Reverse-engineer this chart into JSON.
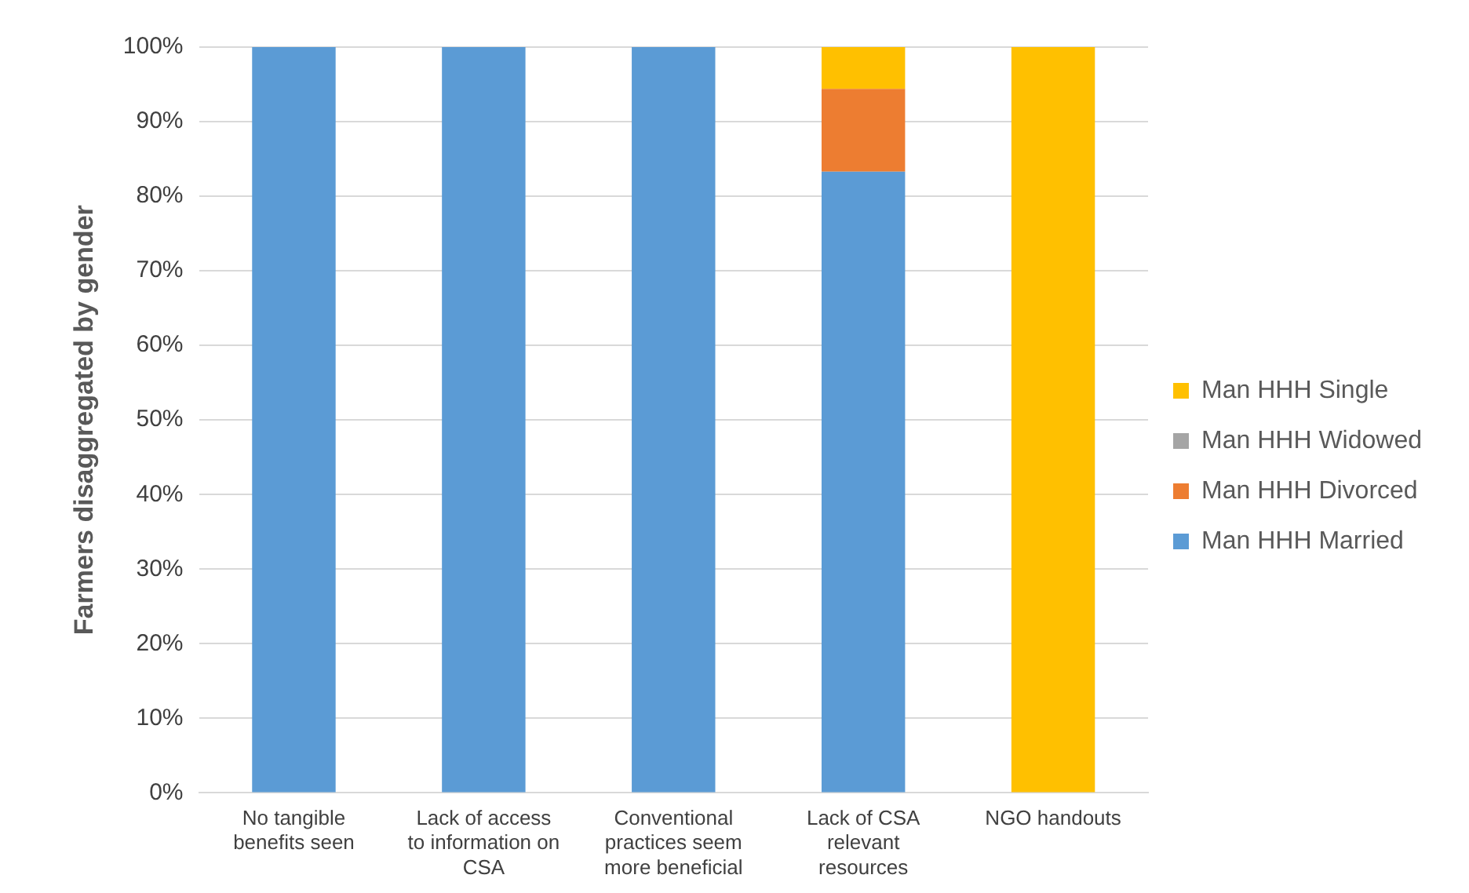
{
  "chart_data": {
    "type": "bar",
    "stacked": true,
    "ylabel": "Farmers disaggregated by gender",
    "categories": [
      "No tangible benefits seen",
      "Lack of access to information on CSA",
      "Conventional practices seem more beneficial",
      "Lack of CSA relevant resources",
      "NGO handouts"
    ],
    "series": [
      {
        "name": "Man HHH Married",
        "color": "#5b9bd5",
        "values": [
          100,
          100,
          100,
          83.3,
          0
        ]
      },
      {
        "name": "Man HHH Divorced",
        "color": "#ed7d31",
        "values": [
          0,
          0,
          0,
          11.1,
          0
        ]
      },
      {
        "name": "Man HHH Widowed",
        "color": "#a5a5a5",
        "values": [
          0,
          0,
          0,
          0,
          0
        ]
      },
      {
        "name": "Man HHH Single",
        "color": "#ffc000",
        "values": [
          0,
          0,
          0,
          5.6,
          100
        ]
      }
    ],
    "ylim": [
      0,
      100
    ],
    "yticks": [
      {
        "value": 0,
        "label": "0%"
      },
      {
        "value": 10,
        "label": "10%"
      },
      {
        "value": 20,
        "label": "20%"
      },
      {
        "value": 30,
        "label": "30%"
      },
      {
        "value": 40,
        "label": "40%"
      },
      {
        "value": 50,
        "label": "50%"
      },
      {
        "value": 60,
        "label": "60%"
      },
      {
        "value": 70,
        "label": "70%"
      },
      {
        "value": 80,
        "label": "80%"
      },
      {
        "value": 90,
        "label": "90%"
      },
      {
        "value": 100,
        "label": "100%"
      }
    ],
    "grid": "y",
    "legend": "right"
  }
}
